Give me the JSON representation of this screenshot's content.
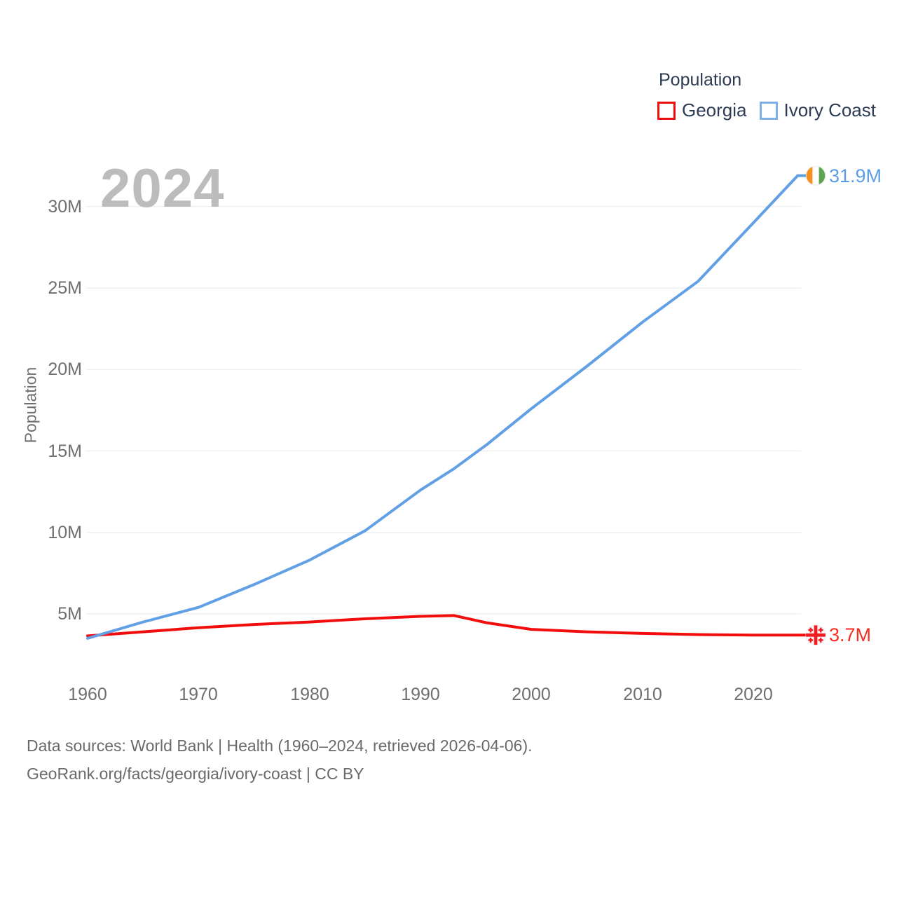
{
  "legend": {
    "title": "Population",
    "items": [
      {
        "label": "Georgia"
      },
      {
        "label": "Ivory Coast"
      }
    ]
  },
  "watermark": "2024",
  "colors": {
    "georgia_red": "#f20d0d",
    "ivory_coast_blue": "#62a0e5",
    "georgia_label_red": "#f62e1f",
    "ivory_coast_label_blue": "#5b9ee6",
    "text_dark": "#2d3b54",
    "axis_gray": "#6e6e6e",
    "grid_gray": "#eaeaea",
    "watermark_gray": "#bcbcbc"
  },
  "footer": {
    "line1": "Data sources: World Bank | Health (1960–2024, retrieved 2026-04-06).",
    "line2": "GeoRank.org/facts/georgia/ivory-coast | CC BY"
  },
  "chart_data": {
    "type": "line",
    "title": "Population",
    "ylabel": "Population",
    "xlabel": "",
    "grid": true,
    "legend_position": "top-right",
    "year_watermark": "2024",
    "xlim": [
      1960,
      2024
    ],
    "ylim": [
      3,
      32.5
    ],
    "x": [
      1960,
      1965,
      1970,
      1975,
      1980,
      1985,
      1990,
      1993,
      1996,
      2000,
      2005,
      2010,
      2015,
      2020,
      2024
    ],
    "series": [
      {
        "name": "Georgia",
        "color": "#f20d0d",
        "unit": "millions",
        "values": [
          3.65,
          3.9,
          4.15,
          4.35,
          4.5,
          4.7,
          4.85,
          4.9,
          4.45,
          4.05,
          3.9,
          3.8,
          3.73,
          3.7,
          3.7
        ],
        "end_label": "3.7M"
      },
      {
        "name": "Ivory Coast",
        "color": "#62a0e5",
        "unit": "millions",
        "values": [
          3.5,
          4.5,
          5.4,
          6.8,
          8.3,
          10.1,
          12.6,
          13.9,
          15.4,
          17.6,
          20.2,
          22.9,
          25.4,
          29.0,
          31.9
        ],
        "end_label": "31.9M"
      }
    ],
    "y_ticks": [
      5,
      10,
      15,
      20,
      25,
      30
    ],
    "y_tick_labels": [
      "5M",
      "10M",
      "15M",
      "20M",
      "25M",
      "30M"
    ],
    "x_ticks": [
      1960,
      1970,
      1980,
      1990,
      2000,
      2010,
      2020
    ],
    "x_tick_labels": [
      "1960",
      "1970",
      "1980",
      "1990",
      "2000",
      "2010",
      "2020"
    ]
  }
}
